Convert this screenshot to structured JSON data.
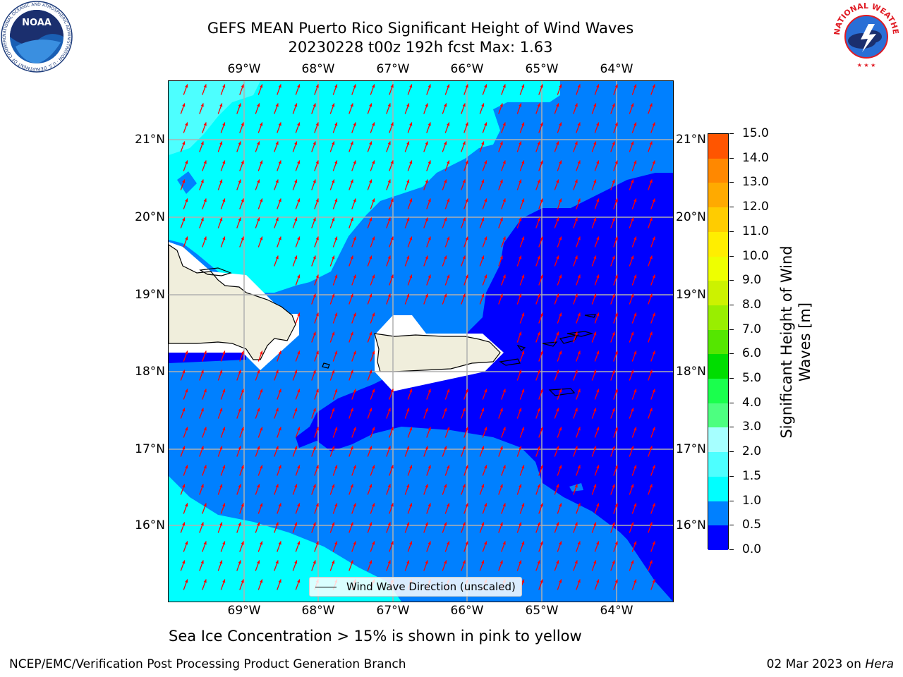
{
  "title_line1": "GEFS MEAN Puerto Rico Significant Height of Wind Waves",
  "title_line2": "20230228 t00z 192h fcst   Max: 1.63",
  "lon_labels": [
    "69°W",
    "68°W",
    "67°W",
    "66°W",
    "65°W",
    "64°W"
  ],
  "lat_labels": [
    "21°N",
    "20°N",
    "19°N",
    "18°N",
    "17°N",
    "16°N"
  ],
  "legend_label": "Wind Wave Direction (unscaled)",
  "colorbar": {
    "title_line1": "Significant Height of Wind",
    "title_line2": "Waves [m]",
    "ticks": [
      "15.0",
      "14.0",
      "13.0",
      "12.0",
      "11.0",
      "10.0",
      "9.0",
      "8.0",
      "7.0",
      "6.0",
      "5.0",
      "4.0",
      "3.0",
      "2.0",
      "1.5",
      "1.0",
      "0.5",
      "0.0"
    ],
    "colors": [
      "#0000ff",
      "#0080ff",
      "#00ffff",
      "#4dffff",
      "#a6ffff",
      "#4dff80",
      "#1aff4d",
      "#00dd00",
      "#55e600",
      "#99ee00",
      "#ccf200",
      "#eeff00",
      "#ffee00",
      "#ffcc00",
      "#ffaa00",
      "#ff8800",
      "#ff5500",
      "#ff2200",
      "#ff0000"
    ]
  },
  "subcaption": "Sea Ice Concentration > 15% is shown in pink to yellow",
  "footer_left": "NCEP/EMC/Verification Post Processing Product Generation Branch",
  "footer_right_date": "02 Mar 2023 on ",
  "footer_right_host": "Hera",
  "noaa_logo": {
    "text": "NOAA",
    "ring_text": "NATIONAL OCEANIC AND ATMOSPHERIC ADMINISTRATION · U.S. DEPARTMENT OF COMMERCE"
  },
  "nws_logo": {
    "ring_text": "NATIONAL WEATHER SERVICE"
  },
  "map_colors": {
    "land": "#f0eedc",
    "mask": "#ffffff",
    "arrow": "#ff0000",
    "grid": "#b0b0b0"
  },
  "wave_direction_deg_from_north": 200
}
